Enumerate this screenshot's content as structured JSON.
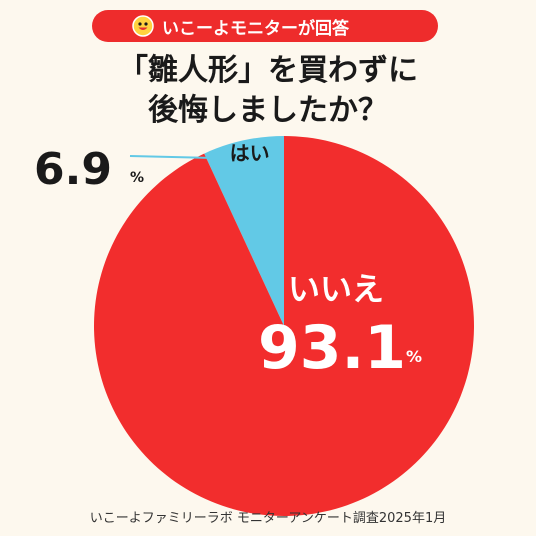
{
  "badge": {
    "text": "いこーよモニターが回答",
    "icon": "smiley-face-icon"
  },
  "title": {
    "line1": "「雛人形」を買わずに",
    "line2": "後悔しましたか？"
  },
  "chart_data": {
    "type": "pie",
    "categories": [
      "はい",
      "いいえ"
    ],
    "values": [
      6.9,
      93.1
    ],
    "value_labels": [
      "6.9",
      "93.1"
    ],
    "unit": "%",
    "colors": [
      "#62c9e6",
      "#f22d2d"
    ],
    "start": "12 o'clock, counter-clockwise"
  },
  "footer": {
    "text": "いこーよファミリーラボ モニターアンケート調査2025年1月"
  },
  "colors": {
    "accent": "#ee2c2c",
    "background": "#fdf8ee",
    "text": "#1a1a1a"
  }
}
